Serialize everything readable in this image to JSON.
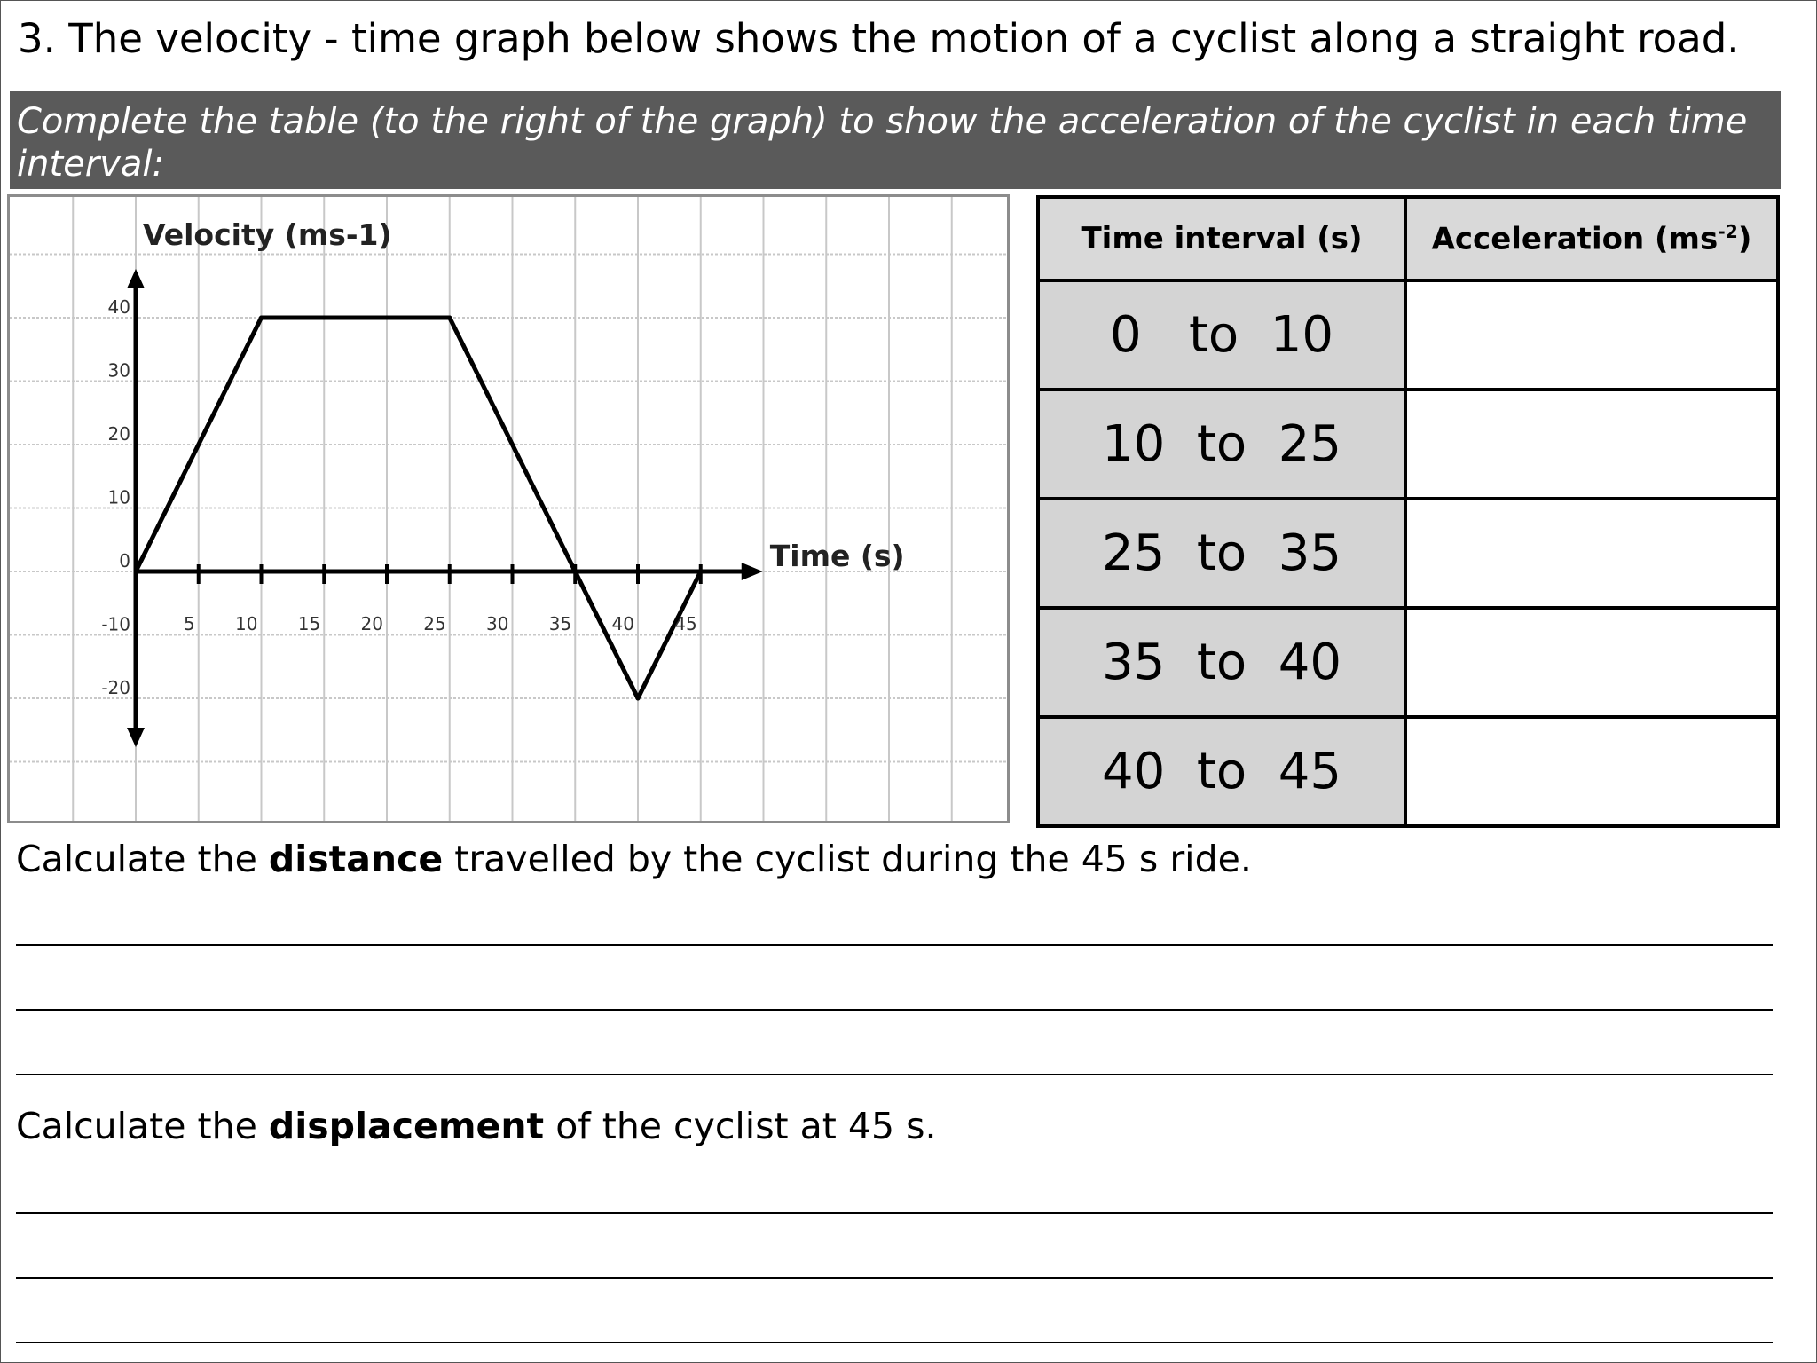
{
  "question": {
    "title": "3. The velocity - time graph below shows the motion of a cyclist along a straight road.",
    "instruction": "Complete the table (to the right of the graph) to show the acceleration of the cyclist in each time interval:"
  },
  "chart_data": {
    "type": "line",
    "ylabel": "Velocity (ms-1)",
    "xlabel": "Time (s)",
    "x_ticks": [
      5,
      10,
      15,
      20,
      25,
      30,
      35,
      40,
      45
    ],
    "x_tick_labels": [
      "5",
      "10",
      "15",
      "20",
      "25",
      "30",
      "35",
      "40",
      "45"
    ],
    "y_ticks": [
      40,
      30,
      20,
      10,
      0,
      -10,
      -20
    ],
    "y_tick_labels": [
      "40",
      "30",
      "20",
      "10",
      "0",
      "-10",
      "-20"
    ],
    "series": [
      {
        "x": [
          0,
          10,
          25,
          35,
          40,
          45
        ],
        "y": [
          0,
          40,
          40,
          0,
          -20,
          0
        ]
      }
    ],
    "xlim": [
      0,
      45
    ],
    "ylim": [
      -20,
      40
    ],
    "grid": true
  },
  "table": {
    "header_interval": "Time interval (s)",
    "header_accel_main": "Acceleration (ms",
    "header_accel_sup": "-2",
    "header_accel_close": ")",
    "rows": [
      {
        "interval": "0   to  10",
        "acceleration": ""
      },
      {
        "interval": "10  to  25",
        "acceleration": ""
      },
      {
        "interval": "25  to  35",
        "acceleration": ""
      },
      {
        "interval": "35  to  40",
        "acceleration": ""
      },
      {
        "interval": "40  to  45",
        "acceleration": ""
      }
    ]
  },
  "distance_question": {
    "prefix": "Calculate the ",
    "bold": "distance",
    "suffix": " travelled by the cyclist during the  45 s ride."
  },
  "displacement_question": {
    "prefix": "Calculate the ",
    "bold": "displacement",
    "suffix": " of the cyclist at 45 s."
  }
}
